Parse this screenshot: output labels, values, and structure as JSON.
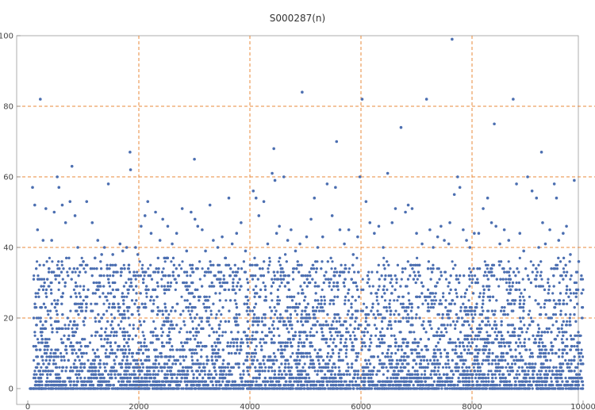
{
  "chart_data": {
    "type": "scatter",
    "title": "S000287(n)",
    "xlabel": "",
    "ylabel": "",
    "xlim": [
      0,
      10000
    ],
    "ylim": [
      0,
      100
    ],
    "x_ticks": [
      0,
      2000,
      4000,
      6000,
      8000,
      10000
    ],
    "y_ticks": [
      0,
      20,
      40,
      60,
      80,
      100
    ],
    "grid": true,
    "grid_x": [
      2000,
      4000,
      6000,
      8000
    ],
    "grid_y": [
      20,
      40,
      60,
      80
    ],
    "colors": {
      "points": "#4c6fb1",
      "grid": "#e8883a"
    },
    "points": [
      [
        43,
        0
      ],
      [
        55,
        0
      ],
      [
        70,
        0
      ],
      [
        86,
        57
      ],
      [
        126,
        52
      ],
      [
        176,
        45
      ],
      [
        226,
        82
      ],
      [
        276,
        42
      ],
      [
        326,
        51
      ],
      [
        431,
        42
      ],
      [
        476,
        50
      ],
      [
        531,
        60
      ],
      [
        561,
        57
      ],
      [
        621,
        52
      ],
      [
        681,
        47
      ],
      [
        761,
        53
      ],
      [
        796,
        63
      ],
      [
        851,
        49
      ],
      [
        901,
        40
      ],
      [
        1001,
        36
      ],
      [
        1061,
        53
      ],
      [
        1161,
        47
      ],
      [
        1211,
        37
      ],
      [
        1261,
        42
      ],
      [
        1331,
        38
      ],
      [
        1381,
        40
      ],
      [
        1431,
        34
      ],
      [
        1451,
        58
      ],
      [
        1531,
        38
      ],
      [
        1581,
        35
      ],
      [
        1661,
        41
      ],
      [
        1711,
        39
      ],
      [
        1781,
        40
      ],
      [
        1821,
        35
      ],
      [
        1841,
        67
      ],
      [
        1851,
        62
      ],
      [
        1941,
        40
      ],
      [
        1981,
        38
      ],
      [
        2041,
        46
      ],
      [
        2111,
        49
      ],
      [
        2161,
        53
      ],
      [
        2221,
        44
      ],
      [
        2301,
        50
      ],
      [
        2381,
        42
      ],
      [
        2431,
        48
      ],
      [
        2521,
        46
      ],
      [
        2601,
        41
      ],
      [
        2681,
        44
      ],
      [
        2781,
        51
      ],
      [
        2861,
        39
      ],
      [
        2941,
        50
      ],
      [
        3001,
        65
      ],
      [
        3011,
        48
      ],
      [
        3061,
        46
      ],
      [
        3141,
        45
      ],
      [
        3201,
        39
      ],
      [
        3281,
        52
      ],
      [
        3341,
        42
      ],
      [
        3421,
        40
      ],
      [
        3501,
        43
      ],
      [
        3621,
        54
      ],
      [
        3681,
        41
      ],
      [
        3761,
        44
      ],
      [
        3841,
        47
      ],
      [
        3921,
        39
      ],
      [
        4061,
        56
      ],
      [
        4111,
        54
      ],
      [
        4161,
        49
      ],
      [
        4251,
        53
      ],
      [
        4321,
        41
      ],
      [
        4401,
        61
      ],
      [
        4431,
        68
      ],
      [
        4451,
        59
      ],
      [
        4481,
        44
      ],
      [
        4531,
        46
      ],
      [
        4611,
        60
      ],
      [
        4681,
        42
      ],
      [
        4741,
        45
      ],
      [
        4821,
        39
      ],
      [
        4901,
        41
      ],
      [
        4941,
        84
      ],
      [
        5021,
        43
      ],
      [
        5101,
        48
      ],
      [
        5161,
        54
      ],
      [
        5221,
        40
      ],
      [
        5311,
        43
      ],
      [
        5391,
        58
      ],
      [
        5481,
        49
      ],
      [
        5541,
        57
      ],
      [
        5561,
        70
      ],
      [
        5621,
        45
      ],
      [
        5701,
        41
      ],
      [
        5781,
        45
      ],
      [
        5861,
        38
      ],
      [
        5941,
        43
      ],
      [
        5981,
        60
      ],
      [
        6021,
        82
      ],
      [
        6091,
        53
      ],
      [
        6161,
        47
      ],
      [
        6241,
        44
      ],
      [
        6321,
        46
      ],
      [
        6401,
        40
      ],
      [
        6481,
        61
      ],
      [
        6561,
        47
      ],
      [
        6621,
        51
      ],
      [
        6721,
        74
      ],
      [
        6801,
        50
      ],
      [
        6851,
        52
      ],
      [
        6921,
        51
      ],
      [
        7001,
        44
      ],
      [
        7101,
        41
      ],
      [
        7181,
        82
      ],
      [
        7241,
        45
      ],
      [
        7301,
        40
      ],
      [
        7381,
        43
      ],
      [
        7441,
        46
      ],
      [
        7501,
        42
      ],
      [
        7581,
        41
      ],
      [
        7601,
        47
      ],
      [
        7641,
        99
      ],
      [
        7681,
        55
      ],
      [
        7741,
        60
      ],
      [
        7781,
        57
      ],
      [
        7841,
        45
      ],
      [
        7901,
        42
      ],
      [
        7961,
        40
      ],
      [
        8041,
        44
      ],
      [
        8121,
        44
      ],
      [
        8201,
        51
      ],
      [
        8281,
        54
      ],
      [
        8351,
        47
      ],
      [
        8401,
        75
      ],
      [
        8431,
        46
      ],
      [
        8501,
        41
      ],
      [
        8581,
        45
      ],
      [
        8661,
        42
      ],
      [
        8741,
        82
      ],
      [
        8801,
        58
      ],
      [
        8861,
        44
      ],
      [
        8931,
        39
      ],
      [
        9001,
        60
      ],
      [
        9081,
        56
      ],
      [
        9161,
        54
      ],
      [
        9201,
        40
      ],
      [
        9251,
        67
      ],
      [
        9271,
        47
      ],
      [
        9321,
        41
      ],
      [
        9401,
        45
      ],
      [
        9481,
        58
      ],
      [
        9521,
        54
      ],
      [
        9561,
        42
      ],
      [
        9641,
        44
      ],
      [
        9701,
        46
      ],
      [
        9771,
        38
      ],
      [
        9841,
        59
      ],
      [
        9921,
        36
      ]
    ]
  }
}
